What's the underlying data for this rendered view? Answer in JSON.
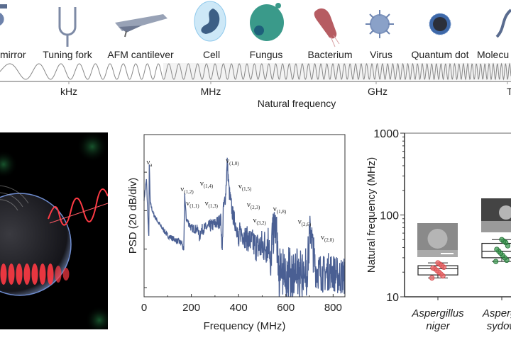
{
  "scale_bar": {
    "objects": [
      {
        "label": "mirror",
        "icon": "mirror-icon"
      },
      {
        "label": "Tuning fork",
        "icon": "tuning-fork-icon"
      },
      {
        "label": "AFM cantilever",
        "icon": "cantilever-icon"
      },
      {
        "label": "Cell",
        "icon": "cell-icon"
      },
      {
        "label": "Fungus",
        "icon": "fungus-icon"
      },
      {
        "label": "Bacterium",
        "icon": "bacterium-icon"
      },
      {
        "label": "Virus",
        "icon": "virus-icon"
      },
      {
        "label": "Quantum dot",
        "icon": "quantum-dot-icon"
      },
      {
        "label": "Molecu",
        "icon": "molecule-icon"
      }
    ],
    "ticks": [
      "kHz",
      "MHz",
      "GHz",
      "TH"
    ],
    "axis_title": "Natural frequency"
  },
  "chart_data": [
    {
      "type": "line",
      "title": "",
      "xlabel": "Frequency (MHz)",
      "ylabel": "PSD (20 dB/div)",
      "xlim": [
        0,
        850
      ],
      "xticks": [
        "0",
        "200",
        "400",
        "600",
        "800"
      ],
      "ylim_div": [
        -0.24,
        4.2
      ],
      "baseline": [
        [
          0,
          2.3
        ],
        [
          10,
          2.8
        ],
        [
          20,
          1.3
        ],
        [
          22,
          3.24
        ],
        [
          26,
          2.2
        ],
        [
          40,
          1.9
        ],
        [
          70,
          1.6
        ],
        [
          100,
          1.35
        ],
        [
          130,
          1.25
        ],
        [
          160,
          1.15
        ],
        [
          168,
          0.95
        ],
        [
          172,
          2.43
        ],
        [
          178,
          1.8
        ],
        [
          200,
          1.55
        ],
        [
          230,
          1.5
        ],
        [
          235,
          1.25
        ],
        [
          240,
          1.5
        ],
        [
          260,
          1.55
        ],
        [
          300,
          1.65
        ],
        [
          325,
          1.75
        ],
        [
          331,
          0.94
        ],
        [
          335,
          2.0
        ],
        [
          345,
          2.4
        ],
        [
          352,
          3.24
        ],
        [
          360,
          2.5
        ],
        [
          375,
          1.9
        ],
        [
          395,
          1.5
        ],
        [
          400,
          1.05
        ],
        [
          405,
          1.45
        ],
        [
          440,
          1.25
        ],
        [
          480,
          1.05
        ],
        [
          520,
          1.1
        ],
        [
          530,
          1.3
        ],
        [
          535,
          0.1
        ],
        [
          540,
          1.2
        ],
        [
          555,
          1.62
        ],
        [
          565,
          1.1
        ],
        [
          570,
          0.5
        ],
        [
          600,
          0.45
        ],
        [
          650,
          0.45
        ],
        [
          690,
          0.5
        ],
        [
          700,
          1.2
        ],
        [
          705,
          1.62
        ],
        [
          712,
          1.1
        ],
        [
          725,
          0.5
        ],
        [
          760,
          0.35
        ],
        [
          790,
          0.45
        ],
        [
          820,
          0.3
        ],
        [
          850,
          0.3
        ]
      ],
      "noise": [
        [
          0,
          0.05
        ],
        [
          160,
          0.08
        ],
        [
          400,
          0.25
        ],
        [
          565,
          0.6
        ],
        [
          690,
          0.6
        ],
        [
          725,
          0.5
        ],
        [
          850,
          0.5
        ]
      ],
      "peaks": [
        {
          "label": "ν",
          "sub": "a",
          "freq": 22
        },
        {
          "label": "ν",
          "sub": "(1,2)",
          "freq": 172
        },
        {
          "label": "ν",
          "sub": "(1,1)",
          "freq": 235
        },
        {
          "label": "ν",
          "sub": "(1,3)",
          "freq": 260
        },
        {
          "label": "ν",
          "sub": "(1,4)",
          "freq": 333
        },
        {
          "label": "ν",
          "sub": "(1,0)",
          "freq": 352
        },
        {
          "label": "ν",
          "sub": "(1,5)",
          "freq": 375
        },
        {
          "label": "ν",
          "sub": "(2,3)",
          "freq": 405
        },
        {
          "label": "ν",
          "sub": "(3,2)",
          "freq": 530
        },
        {
          "label": "ν",
          "sub": "(1,8)",
          "freq": 555
        },
        {
          "label": "ν",
          "sub": "(2,6)",
          "freq": 705
        },
        {
          "label": "ν",
          "sub": "(2,0)",
          "freq": 790
        }
      ],
      "color": "#4a5f93"
    },
    {
      "type": "box",
      "ylabel": "Natural frequency (MHz)",
      "yscale": "log",
      "ylim": [
        10,
        1000
      ],
      "yticks": [
        "10",
        "100",
        "1000"
      ],
      "groups": [
        {
          "name": [
            "Aspergillus",
            "niger"
          ],
          "color": "#e8686a",
          "whisker": [
            17,
            26
          ],
          "box": [
            18.5,
            24
          ],
          "median": 22,
          "points": [
            17,
            18,
            19,
            20,
            21,
            22,
            22.5,
            23,
            24,
            25,
            26
          ]
        },
        {
          "name": [
            "Aspergil",
            "sydow"
          ],
          "color": "#3e9a52",
          "whisker": [
            27,
            50
          ],
          "box": [
            30,
            45
          ],
          "median": 36,
          "points": [
            27,
            28,
            30,
            32,
            34,
            36,
            38,
            42,
            46,
            48,
            50
          ]
        }
      ]
    }
  ]
}
